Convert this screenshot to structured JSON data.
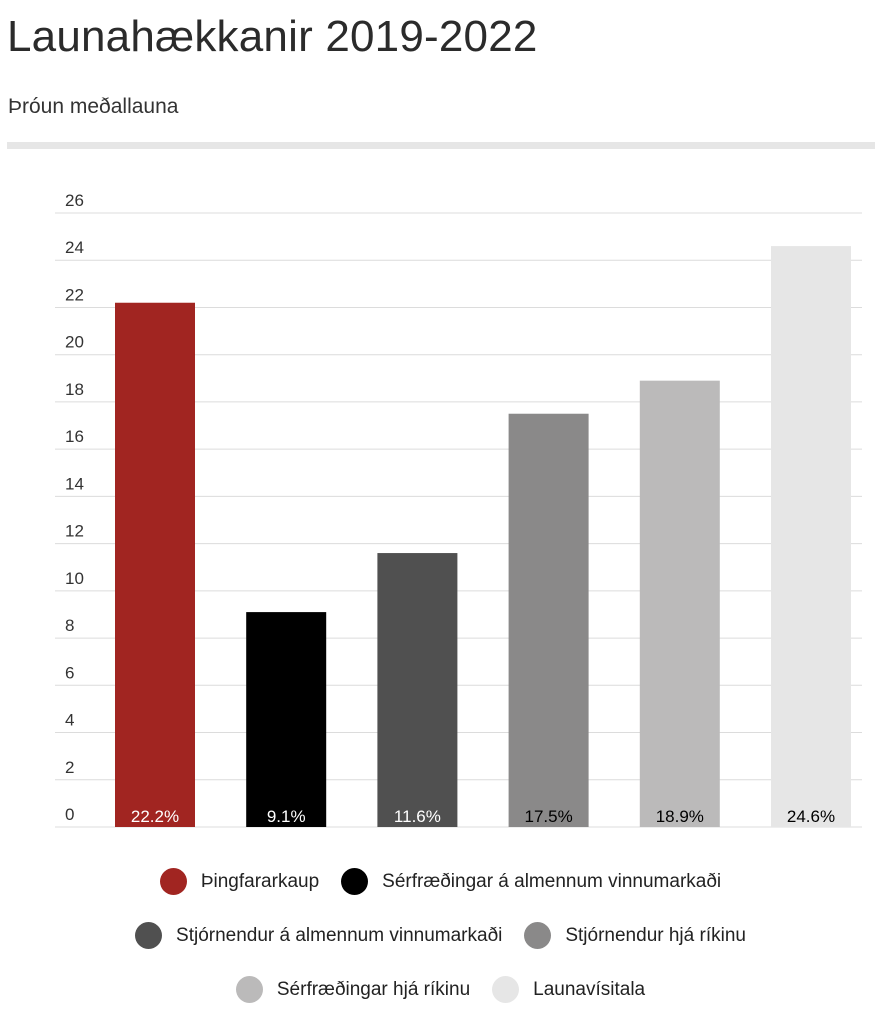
{
  "header": {
    "title": "Launahækkanir 2019-2022",
    "subtitle": "Þróun meðallauna"
  },
  "chart_data": {
    "type": "bar",
    "title": "Launahækkanir 2019-2022",
    "subtitle": "Þróun meðallauna",
    "xlabel": "",
    "ylabel": "",
    "ylim": [
      0,
      26
    ],
    "yticks": [
      0,
      2,
      4,
      6,
      8,
      10,
      12,
      14,
      16,
      18,
      20,
      22,
      24,
      26
    ],
    "grid": true,
    "legend_position": "bottom",
    "categories": [
      "Þingfararkaup",
      "Sérfræðingar á almennum vinnumarkaði",
      "Stjórnendur á almennum vinnumarkaði",
      "Stjórnendur hjá ríkinu",
      "Sérfræðingar hjá ríkinu",
      "Launavísitala"
    ],
    "values": [
      22.2,
      9.1,
      11.6,
      17.5,
      18.9,
      24.6
    ],
    "data_labels": [
      "22.2%",
      "9.1%",
      "11.6%",
      "17.5%",
      "18.9%",
      "24.6%"
    ],
    "colors": [
      "#a12521",
      "#000000",
      "#505050",
      "#8a8989",
      "#bbbaba",
      "#e6e6e6"
    ],
    "label_colors": [
      "#ffffff",
      "#ffffff",
      "#ffffff",
      "#000000",
      "#000000",
      "#000000"
    ]
  }
}
